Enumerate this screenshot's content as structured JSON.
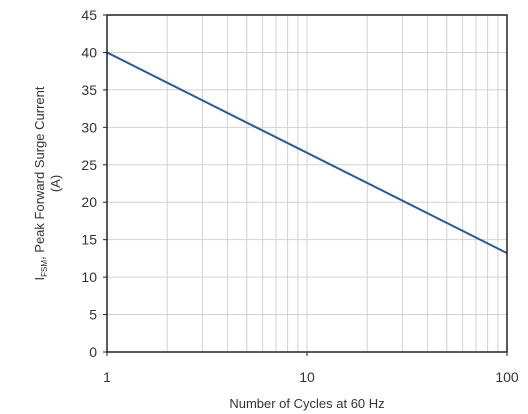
{
  "chart_data": {
    "type": "line",
    "xlabel": "Number of Cycles at 60 Hz",
    "ylabel": {
      "symbol": "I",
      "subscript": "FSM",
      "rest": ", Peak Forward Surge Current",
      "unit": "(A)"
    },
    "x_scale": "log",
    "xlim": [
      1,
      100
    ],
    "ylim": [
      0,
      45
    ],
    "x_ticks": [
      "1",
      "10",
      "100"
    ],
    "y_ticks": [
      "0",
      "5",
      "10",
      "15",
      "20",
      "25",
      "30",
      "35",
      "40",
      "45"
    ],
    "grid": true,
    "series": [
      {
        "x": [
          1,
          100
        ],
        "y": [
          40,
          13.2
        ],
        "color": "#2a5b9a"
      }
    ]
  }
}
